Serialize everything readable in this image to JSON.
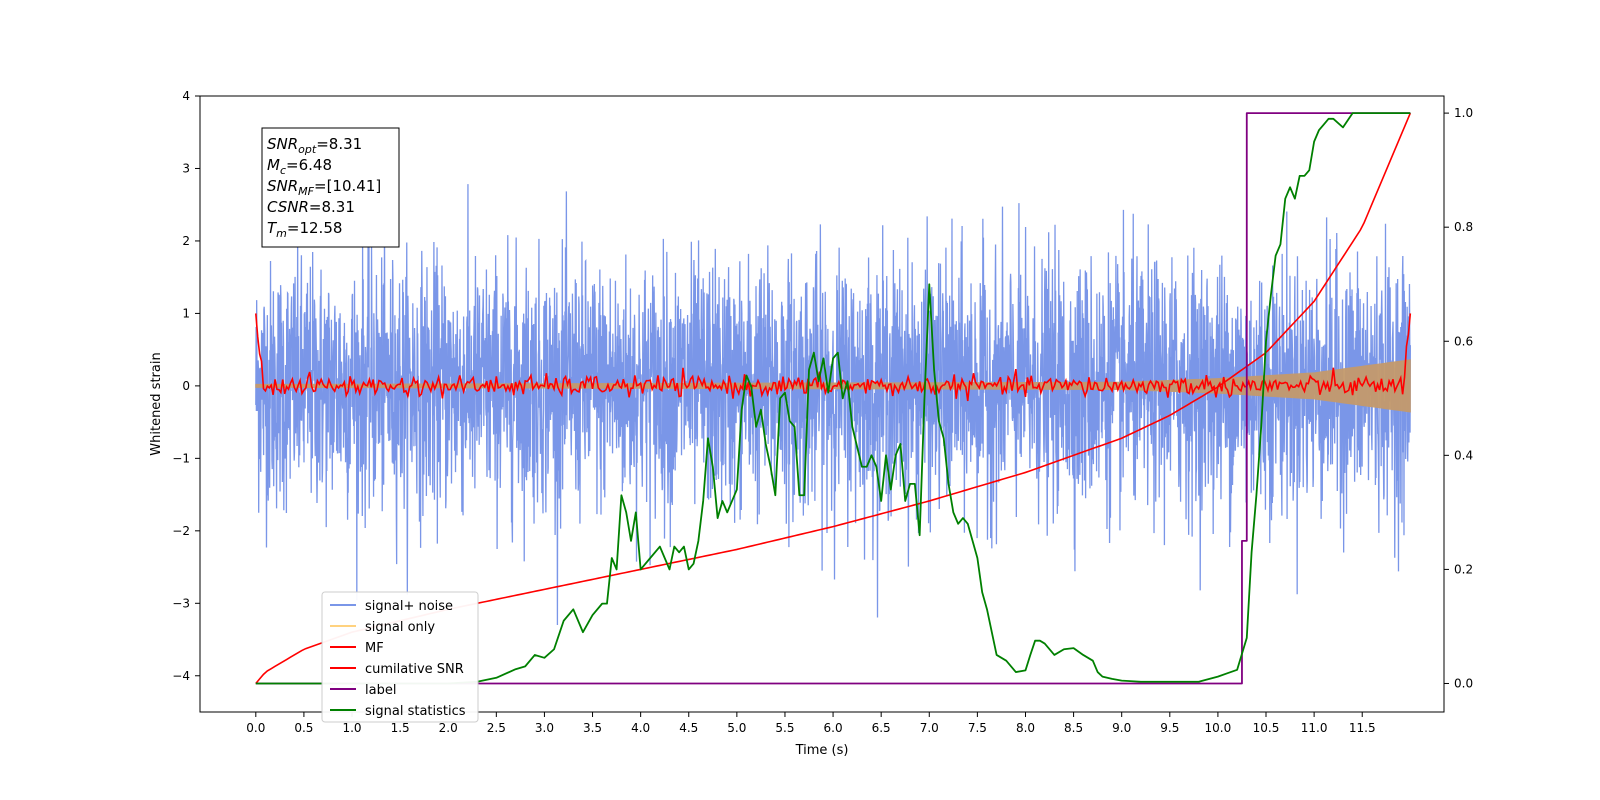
{
  "chart_data": {
    "type": "line",
    "xlabel": "Time (s)",
    "ylabel": "Whitened strain",
    "xlim": [
      -0.58,
      12.35
    ],
    "ylim_left": [
      -4.5,
      4.0
    ],
    "ylim_right": [
      -0.05,
      1.03
    ],
    "x_ticks": [
      "0.0",
      "0.5",
      "1.0",
      "1.5",
      "2.0",
      "2.5",
      "3.0",
      "3.5",
      "4.0",
      "4.5",
      "5.0",
      "5.5",
      "6.0",
      "6.5",
      "7.0",
      "7.5",
      "8.0",
      "8.5",
      "9.0",
      "9.5",
      "10.0",
      "10.5",
      "11.0",
      "11.5"
    ],
    "y_ticks_left": [
      "4",
      "3",
      "2",
      "1",
      "0",
      "−1",
      "−2",
      "−3",
      "−4"
    ],
    "y_ticks_right": [
      "0.0",
      "0.2",
      "0.4",
      "0.6",
      "0.8",
      "1.0"
    ],
    "grid": false,
    "legend_position": "lower-left",
    "legend": [
      {
        "label": "signal+ noise",
        "color": "#7a96e8"
      },
      {
        "label": "signal only",
        "color": "#ffd27f"
      },
      {
        "label": "MF",
        "color": "#ff0000"
      },
      {
        "label": "cumilative SNR",
        "color": "#ff0000"
      },
      {
        "label": "label",
        "color": "#800080"
      },
      {
        "label": "signal statistics",
        "color": "#008000"
      }
    ],
    "stats_box": [
      {
        "name": "SNR",
        "sub": "opt",
        "value": "=8.31"
      },
      {
        "name": "M",
        "sub": "c",
        "value": "=6.48"
      },
      {
        "name": "SNR",
        "sub": "MF",
        "value": "=[10.41]"
      },
      {
        "name": "CSNR",
        "sub": "",
        "value": "=8.31"
      },
      {
        "name": "T",
        "sub": "m",
        "value": "=12.58"
      }
    ],
    "series": [
      {
        "name": "signal+ noise",
        "axis": "left",
        "color": "#7a96e8",
        "x_range": [
          0.0,
          12.0
        ],
        "amplitude_sd": 1.0,
        "range": [
          -3.3,
          3.65
        ]
      },
      {
        "name": "signal only",
        "axis": "left",
        "color": "#ffd27f",
        "x_range": [
          0.0,
          12.0
        ],
        "envelope": [
          [
            0.0,
            0.02
          ],
          [
            9.0,
            0.05
          ],
          [
            10.0,
            0.1
          ],
          [
            11.0,
            0.18
          ],
          [
            12.0,
            0.36
          ]
        ]
      },
      {
        "name": "MF",
        "axis": "left",
        "color": "#ff0000",
        "x_range": [
          0.0,
          12.0
        ],
        "start": 1.0,
        "end": 1.0,
        "noise_sd": 0.07
      },
      {
        "name": "cumilative SNR",
        "axis": "right",
        "color": "#ff0000",
        "x": [
          0.0,
          0.1,
          0.5,
          1.0,
          2.0,
          3.0,
          4.0,
          5.0,
          6.0,
          7.0,
          8.0,
          9.0,
          9.5,
          10.0,
          10.5,
          11.0,
          11.5,
          12.0
        ],
        "y": [
          0.0,
          0.02,
          0.06,
          0.09,
          0.13,
          0.165,
          0.2,
          0.235,
          0.275,
          0.32,
          0.37,
          0.43,
          0.47,
          0.52,
          0.58,
          0.67,
          0.8,
          1.0
        ]
      },
      {
        "name": "label",
        "axis": "right",
        "color": "#800080",
        "x": [
          0.0,
          10.25,
          10.25,
          10.3,
          10.3,
          12.0
        ],
        "y": [
          0.0,
          0.0,
          0.25,
          0.25,
          1.0,
          1.0
        ]
      },
      {
        "name": "signal statistics",
        "axis": "right",
        "color": "#008000",
        "x": [
          0.0,
          1.0,
          2.0,
          2.3,
          2.5,
          2.7,
          2.8,
          2.9,
          3.0,
          3.1,
          3.2,
          3.3,
          3.4,
          3.5,
          3.6,
          3.65,
          3.7,
          3.75,
          3.8,
          3.85,
          3.9,
          3.95,
          4.0,
          4.1,
          4.2,
          4.3,
          4.35,
          4.4,
          4.45,
          4.5,
          4.55,
          4.6,
          4.65,
          4.7,
          4.75,
          4.8,
          4.85,
          4.9,
          4.95,
          5.0,
          5.05,
          5.1,
          5.15,
          5.2,
          5.25,
          5.3,
          5.35,
          5.4,
          5.45,
          5.5,
          5.55,
          5.6,
          5.65,
          5.7,
          5.75,
          5.8,
          5.85,
          5.9,
          5.95,
          6.0,
          6.05,
          6.1,
          6.15,
          6.2,
          6.3,
          6.35,
          6.4,
          6.45,
          6.5,
          6.55,
          6.6,
          6.65,
          6.7,
          6.75,
          6.8,
          6.85,
          6.9,
          6.95,
          7.0,
          7.05,
          7.1,
          7.15,
          7.2,
          7.25,
          7.3,
          7.35,
          7.4,
          7.45,
          7.5,
          7.55,
          7.6,
          7.7,
          7.8,
          7.9,
          8.0,
          8.05,
          8.1,
          8.15,
          8.2,
          8.3,
          8.4,
          8.5,
          8.6,
          8.65,
          8.7,
          8.75,
          8.8,
          8.9,
          9.0,
          9.2,
          9.5,
          9.8,
          10.0,
          10.1,
          10.2,
          10.3,
          10.35,
          10.4,
          10.45,
          10.5,
          10.55,
          10.6,
          10.65,
          10.7,
          10.75,
          10.8,
          10.85,
          10.9,
          10.95,
          11.0,
          11.05,
          11.1,
          11.15,
          11.2,
          11.3,
          11.4,
          11.5,
          11.6,
          11.7,
          11.8,
          11.9,
          12.0
        ],
        "y": [
          0.0,
          0.0,
          0.0,
          0.003,
          0.01,
          0.025,
          0.03,
          0.05,
          0.045,
          0.06,
          0.11,
          0.13,
          0.09,
          0.12,
          0.14,
          0.14,
          0.22,
          0.2,
          0.33,
          0.3,
          0.25,
          0.3,
          0.2,
          0.22,
          0.24,
          0.2,
          0.24,
          0.23,
          0.24,
          0.2,
          0.21,
          0.25,
          0.32,
          0.43,
          0.38,
          0.29,
          0.32,
          0.3,
          0.32,
          0.34,
          0.48,
          0.54,
          0.52,
          0.45,
          0.48,
          0.42,
          0.38,
          0.33,
          0.5,
          0.51,
          0.46,
          0.45,
          0.33,
          0.33,
          0.55,
          0.58,
          0.53,
          0.57,
          0.51,
          0.57,
          0.58,
          0.5,
          0.53,
          0.45,
          0.38,
          0.38,
          0.4,
          0.38,
          0.32,
          0.4,
          0.34,
          0.4,
          0.42,
          0.32,
          0.35,
          0.35,
          0.26,
          0.5,
          0.7,
          0.55,
          0.46,
          0.43,
          0.35,
          0.3,
          0.28,
          0.29,
          0.28,
          0.25,
          0.22,
          0.16,
          0.13,
          0.05,
          0.04,
          0.02,
          0.023,
          0.05,
          0.075,
          0.075,
          0.07,
          0.05,
          0.06,
          0.062,
          0.05,
          0.045,
          0.04,
          0.02,
          0.012,
          0.008,
          0.005,
          0.003,
          0.003,
          0.003,
          0.012,
          0.018,
          0.024,
          0.08,
          0.23,
          0.33,
          0.45,
          0.6,
          0.68,
          0.75,
          0.77,
          0.85,
          0.87,
          0.85,
          0.89,
          0.89,
          0.9,
          0.95,
          0.97,
          0.98,
          0.99,
          0.99,
          0.975,
          1.0,
          1.0,
          1.0,
          1.0,
          1.0,
          1.0,
          1.0
        ]
      }
    ]
  }
}
